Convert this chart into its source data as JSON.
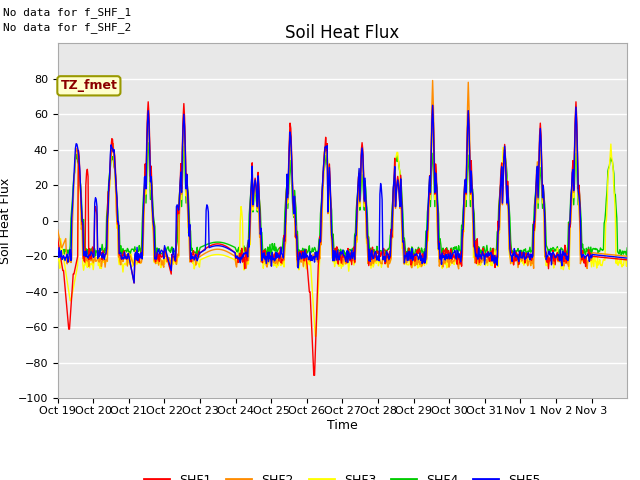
{
  "title": "Soil Heat Flux",
  "ylabel": "Soil Heat Flux",
  "xlabel": "Time",
  "ylim": [
    -100,
    100
  ],
  "yticks": [
    -100,
    -80,
    -60,
    -40,
    -20,
    0,
    20,
    40,
    60,
    80
  ],
  "xtick_labels": [
    "Oct 19",
    "Oct 20",
    "Oct 21",
    "Oct 22",
    "Oct 23",
    "Oct 24",
    "Oct 25",
    "Oct 26",
    "Oct 27",
    "Oct 28",
    "Oct 29",
    "Oct 30",
    "Oct 31",
    "Nov 1",
    "Nov 2",
    "Nov 3"
  ],
  "colors": {
    "SHF1": "#ff0000",
    "SHF2": "#ff8c00",
    "SHF3": "#ffff00",
    "SHF4": "#00cc00",
    "SHF5": "#0000ff"
  },
  "plot_bg_color": "#e8e8e8",
  "no_data_text1": "No data for f_SHF_1",
  "no_data_text2": "No data for f_SHF_2",
  "legend_box_text": "TZ_fmet",
  "legend_box_color": "#ffffcc",
  "legend_box_edgecolor": "#999900",
  "title_fontsize": 12,
  "axis_label_fontsize": 9,
  "tick_fontsize": 8,
  "line_width": 1.0
}
